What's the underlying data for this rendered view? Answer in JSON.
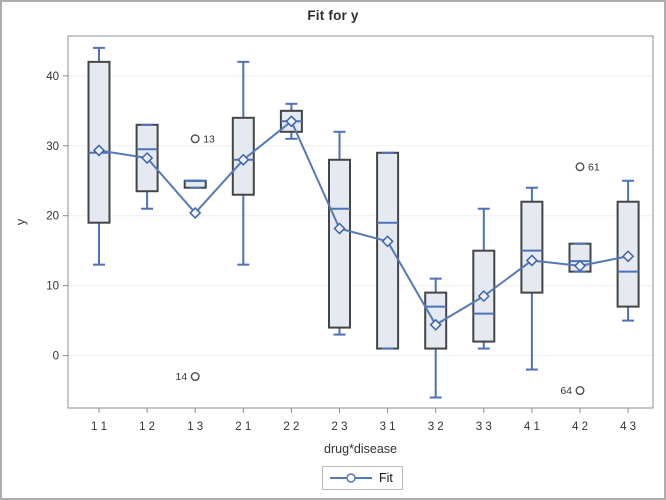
{
  "chart_data": {
    "type": "box",
    "title": "Fit for y",
    "xlabel": "drug*disease",
    "ylabel": "y",
    "legend": {
      "label": "Fit",
      "position": "bottom-center"
    },
    "yticks": [
      0,
      10,
      20,
      30,
      40
    ],
    "ylim": [
      -7.5,
      45.7
    ],
    "grid": "horizontal",
    "categories": [
      "1 1",
      "1 2",
      "1 3",
      "2 1",
      "2 2",
      "2 3",
      "3 1",
      "3 2",
      "3 3",
      "4 1",
      "4 2",
      "4 3"
    ],
    "boxes": [
      {
        "category": "1 1",
        "whisker_low": 13,
        "q1": 19,
        "median": 29,
        "q3": 42,
        "whisker_high": 44,
        "outliers": []
      },
      {
        "category": "1 2",
        "whisker_low": 21,
        "q1": 23.5,
        "median": 29.5,
        "q3": 33,
        "whisker_high": 33,
        "outliers": []
      },
      {
        "category": "1 3",
        "whisker_low": 24,
        "q1": 24,
        "median": 25,
        "q3": 25,
        "whisker_high": 25,
        "outliers": [
          {
            "value": 31,
            "label": "13",
            "label_side": "right"
          },
          {
            "value": -3,
            "label": "14",
            "label_side": "left"
          }
        ]
      },
      {
        "category": "2 1",
        "whisker_low": 13,
        "q1": 23,
        "median": 28,
        "q3": 34,
        "whisker_high": 42,
        "outliers": []
      },
      {
        "category": "2 2",
        "whisker_low": 31,
        "q1": 32,
        "median": 33.5,
        "q3": 35,
        "whisker_high": 36,
        "outliers": []
      },
      {
        "category": "2 3",
        "whisker_low": 3,
        "q1": 4,
        "median": 21,
        "q3": 28,
        "whisker_high": 32,
        "outliers": []
      },
      {
        "category": "3 1",
        "whisker_low": 1,
        "q1": 1,
        "median": 19,
        "q3": 29,
        "whisker_high": 29,
        "outliers": []
      },
      {
        "category": "3 2",
        "whisker_low": -6,
        "q1": 1,
        "median": 7,
        "q3": 9,
        "whisker_high": 11,
        "outliers": []
      },
      {
        "category": "3 3",
        "whisker_low": 1,
        "q1": 2,
        "median": 6,
        "q3": 15,
        "whisker_high": 21,
        "outliers": []
      },
      {
        "category": "4 1",
        "whisker_low": -2,
        "q1": 9,
        "median": 15,
        "q3": 22,
        "whisker_high": 24,
        "outliers": []
      },
      {
        "category": "4 2",
        "whisker_low": 12,
        "q1": 12,
        "median": 13.5,
        "q3": 16,
        "whisker_high": 16,
        "outliers": [
          {
            "value": 27,
            "label": "61",
            "label_side": "right"
          },
          {
            "value": -5,
            "label": "64",
            "label_side": "left"
          }
        ]
      },
      {
        "category": "4 3",
        "whisker_low": 5,
        "q1": 7,
        "median": 12,
        "q3": 22,
        "whisker_high": 25,
        "outliers": []
      }
    ],
    "series": [
      {
        "name": "Fit",
        "type": "line",
        "marker": "open-diamond",
        "values": [
          29.33,
          28.25,
          20.4,
          28,
          33.5,
          18.17,
          16.33,
          4.4,
          8.5,
          13.6,
          12.83,
          14.2
        ]
      }
    ],
    "colors": {
      "box_fill": "#E4E9F2",
      "box_stroke": "#454545",
      "whisker": "#4C72B8",
      "median": "#4C72B8",
      "fit_line": "#5479B7",
      "fit_marker_stroke": "#3F63A7",
      "fit_marker_fill": "#EDF1F9",
      "outlier_stroke": "#4F4F4F",
      "gridline": "#EFEFEF",
      "plot_border": "#8C8C8C",
      "text": "#333333",
      "frame_border": "#ADADAD"
    }
  }
}
